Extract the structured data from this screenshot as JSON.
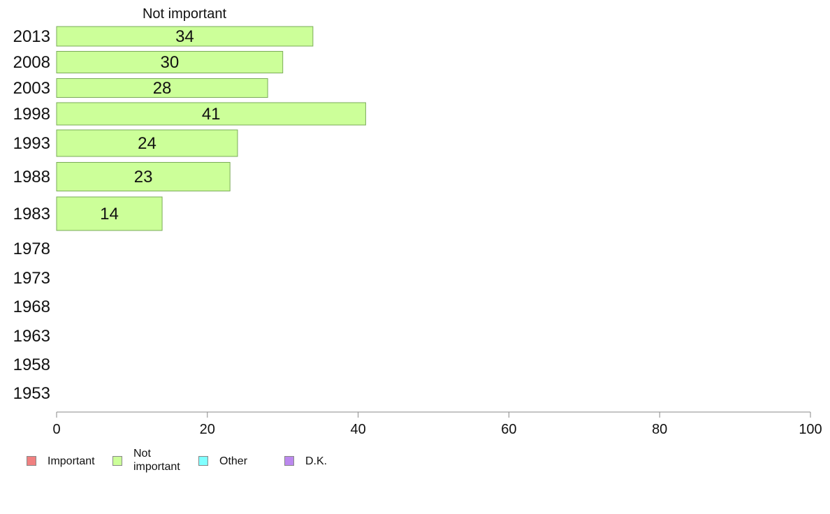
{
  "chart_data": {
    "type": "bar",
    "orientation": "horizontal",
    "title": "Not important",
    "categories": [
      "2013",
      "2008",
      "2003",
      "1998",
      "1993",
      "1988",
      "1983",
      "1978",
      "1973",
      "1968",
      "1963",
      "1958",
      "1953"
    ],
    "series": [
      {
        "name": "Not important",
        "values": [
          34,
          30,
          28,
          41,
          24,
          23,
          14,
          null,
          null,
          null,
          null,
          null,
          null
        ],
        "color": "#ccff99"
      }
    ],
    "xlim": [
      0,
      100
    ],
    "xticks": [
      0,
      20,
      40,
      60,
      80,
      100
    ],
    "grid": false,
    "legend_position": "bottom-left"
  },
  "legend": {
    "items": [
      {
        "label": "Important",
        "color": "#f08080"
      },
      {
        "label": "Not\nimportant",
        "color": "#ccff99"
      },
      {
        "label": "Other",
        "color": "#80ffff"
      },
      {
        "label": "D.K.",
        "color": "#bb88ee"
      }
    ]
  },
  "colors": {
    "bar_stroke": "#7aab58",
    "axis": "#888888",
    "text": "#111111"
  }
}
